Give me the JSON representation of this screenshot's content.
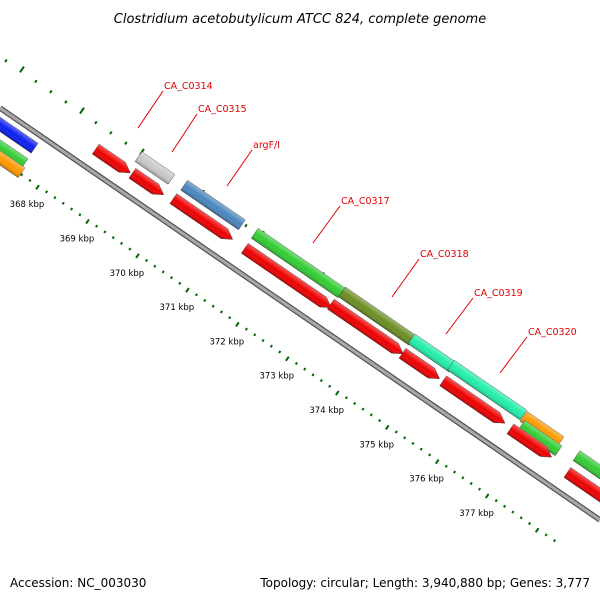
{
  "title": "Clostridium acetobutylicum ATCC 824, complete genome",
  "footer": {
    "accession": "Accession: NC_003030",
    "topology": "Topology: circular; Length: 3,940,880 bp; Genes: 3,777"
  },
  "kbp_ticks": [
    "368 kbp",
    "369 kbp",
    "370 kbp",
    "371 kbp",
    "372 kbp",
    "373 kbp",
    "374 kbp",
    "375 kbp",
    "376 kbp",
    "377 kbp"
  ],
  "gene_labels": [
    "CA_C0314",
    "CA_C0315",
    "argF/I",
    "CA_C0317",
    "CA_C0318",
    "CA_C0319",
    "CA_C0320"
  ],
  "colors": {
    "backbone": "#8a8a8a",
    "cds": "#ee0000",
    "blue": "#0a1ef0",
    "green": "#33cc33",
    "orange": "#ff9900",
    "gray": "#c8c8c8",
    "steelblue": "#4a86be",
    "olive": "#6b8e23",
    "aquamarine": "#22eeaa",
    "tick": "#006600",
    "label": "#e00000"
  }
}
